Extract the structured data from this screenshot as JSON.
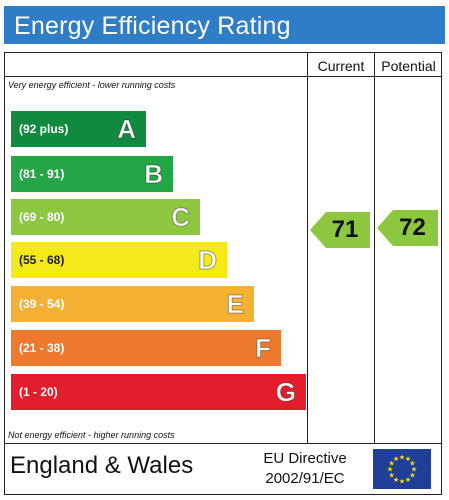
{
  "header": {
    "title": "Energy Efficiency Rating"
  },
  "columns": {
    "current": "Current",
    "potential": "Potential"
  },
  "notes": {
    "top": "Very energy efficient - lower running costs",
    "bottom": "Not energy efficient - higher running costs"
  },
  "bands": [
    {
      "range": "(92 plus)",
      "letter": "A",
      "color": "#0f8a3e"
    },
    {
      "range": "(81 - 91)",
      "letter": "B",
      "color": "#25a646"
    },
    {
      "range": "(69 - 80)",
      "letter": "C",
      "color": "#8dc63f"
    },
    {
      "range": "(55 - 68)",
      "letter": "D",
      "color": "#f4ea1a"
    },
    {
      "range": "(39 - 54)",
      "letter": "E",
      "color": "#f5b133"
    },
    {
      "range": "(21 - 38)",
      "letter": "F",
      "color": "#ee7a30"
    },
    {
      "range": "(1 - 20)",
      "letter": "G",
      "color": "#e31d2b"
    }
  ],
  "ratings": {
    "current": {
      "value": "71",
      "band": "C",
      "color": "#8dc63f"
    },
    "potential": {
      "value": "72",
      "band": "C",
      "color": "#8dc63f"
    }
  },
  "footer": {
    "country": "England & Wales",
    "directive_line1": "EU Directive",
    "directive_line2": "2002/91/EC"
  },
  "icons": {
    "eu_flag": "eu-flag-icon"
  }
}
